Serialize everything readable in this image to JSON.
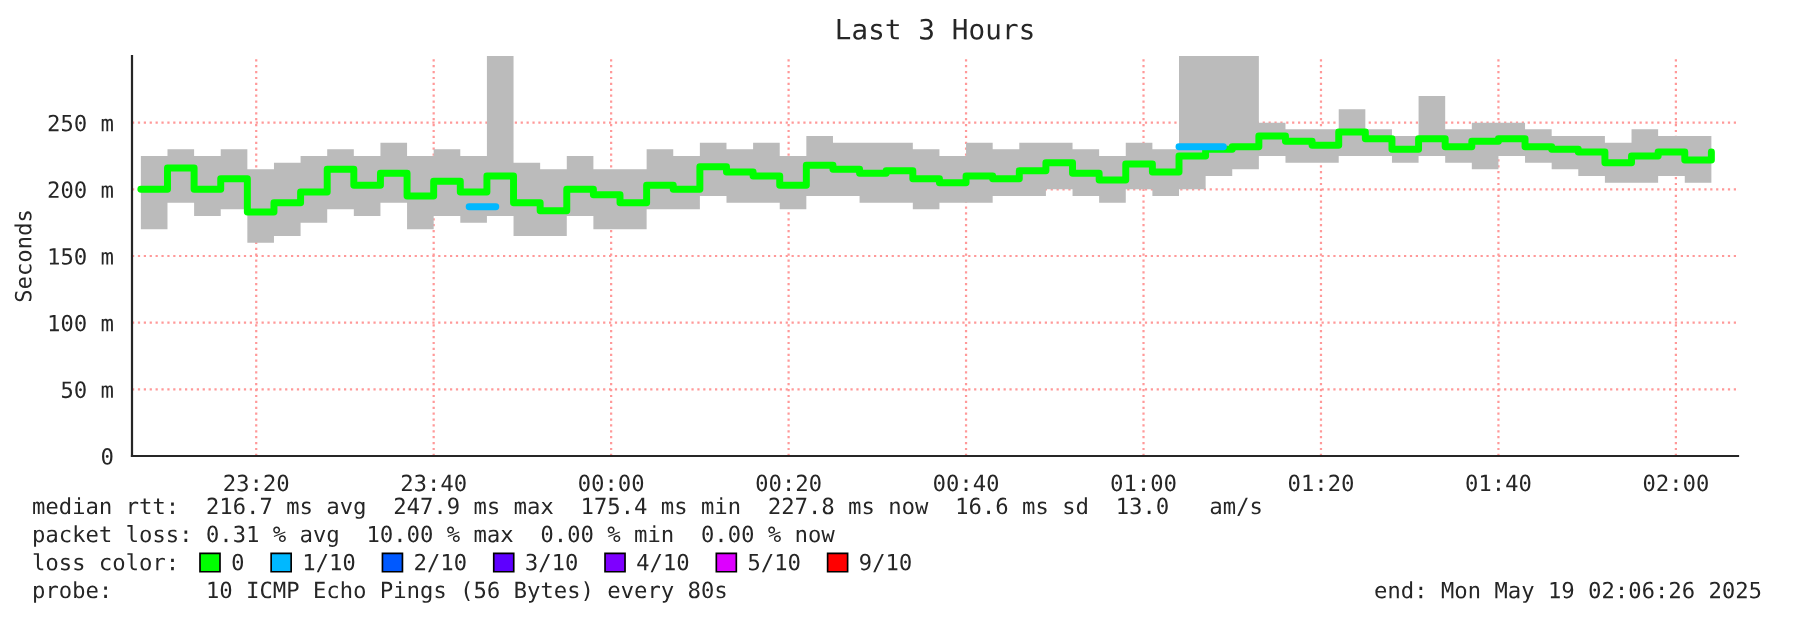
{
  "chart_data": {
    "type": "step",
    "title": "Last 3 Hours",
    "ylabel": "Seconds",
    "x": [
      "2025-05-18T23:07",
      "2025-05-18T23:10",
      "2025-05-18T23:13",
      "2025-05-18T23:16",
      "2025-05-18T23:19",
      "2025-05-18T23:22",
      "2025-05-18T23:25",
      "2025-05-18T23:28",
      "2025-05-18T23:31",
      "2025-05-18T23:34",
      "2025-05-18T23:37",
      "2025-05-18T23:40",
      "2025-05-18T23:43",
      "2025-05-18T23:46",
      "2025-05-18T23:49",
      "2025-05-18T23:52",
      "2025-05-18T23:55",
      "2025-05-18T23:58",
      "2025-05-19T00:01",
      "2025-05-19T00:04",
      "2025-05-19T00:07",
      "2025-05-19T00:10",
      "2025-05-19T00:13",
      "2025-05-19T00:16",
      "2025-05-19T00:19",
      "2025-05-19T00:22",
      "2025-05-19T00:25",
      "2025-05-19T00:28",
      "2025-05-19T00:31",
      "2025-05-19T00:34",
      "2025-05-19T00:37",
      "2025-05-19T00:40",
      "2025-05-19T00:43",
      "2025-05-19T00:46",
      "2025-05-19T00:49",
      "2025-05-19T00:52",
      "2025-05-19T00:55",
      "2025-05-19T00:58",
      "2025-05-19T01:01",
      "2025-05-19T01:04",
      "2025-05-19T01:07",
      "2025-05-19T01:10",
      "2025-05-19T01:13",
      "2025-05-19T01:16",
      "2025-05-19T01:19",
      "2025-05-19T01:22",
      "2025-05-19T01:25",
      "2025-05-19T01:28",
      "2025-05-19T01:31",
      "2025-05-19T01:34",
      "2025-05-19T01:37",
      "2025-05-19T01:40",
      "2025-05-19T01:43",
      "2025-05-19T01:46",
      "2025-05-19T01:49",
      "2025-05-19T01:52",
      "2025-05-19T01:55",
      "2025-05-19T01:58",
      "2025-05-19T02:01",
      "2025-05-19T02:04"
    ],
    "series": [
      {
        "name": "0",
        "color": "#00ff00",
        "values": [
          200,
          216,
          200,
          208,
          183,
          190,
          198,
          215,
          203,
          212,
          195,
          206,
          198,
          210,
          190,
          184,
          200,
          196,
          190,
          203,
          200,
          217,
          213,
          210,
          203,
          218,
          215,
          212,
          214,
          208,
          205,
          210,
          208,
          214,
          220,
          212,
          207,
          219,
          213,
          225,
          230,
          232,
          240,
          236,
          233,
          243,
          238,
          230,
          238,
          232,
          236,
          238,
          232,
          230,
          228,
          220,
          225,
          228,
          222,
          228
        ],
        "lower": [
          170,
          190,
          180,
          185,
          160,
          165,
          175,
          185,
          180,
          190,
          170,
          180,
          175,
          180,
          165,
          165,
          180,
          170,
          170,
          185,
          185,
          195,
          190,
          190,
          185,
          195,
          195,
          190,
          190,
          185,
          190,
          190,
          195,
          195,
          200,
          195,
          190,
          200,
          195,
          200,
          210,
          215,
          225,
          220,
          220,
          225,
          225,
          220,
          225,
          220,
          215,
          225,
          220,
          215,
          210,
          205,
          205,
          210,
          205,
          205
        ],
        "upper": [
          225,
          230,
          225,
          230,
          215,
          220,
          225,
          230,
          225,
          235,
          225,
          230,
          225,
          300,
          220,
          215,
          225,
          215,
          215,
          230,
          225,
          235,
          230,
          235,
          225,
          240,
          235,
          235,
          235,
          230,
          225,
          235,
          230,
          235,
          235,
          230,
          225,
          235,
          230,
          300,
          300,
          300,
          250,
          245,
          245,
          260,
          245,
          240,
          270,
          245,
          250,
          250,
          245,
          240,
          240,
          235,
          245,
          240,
          240,
          245
        ]
      },
      {
        "name": "1/10",
        "color": "#00b8ff",
        "x": [
          "2025-05-18T23:44",
          "2025-05-18T23:46",
          "2025-05-18T23:47",
          "2025-05-19T01:04",
          "2025-05-19T01:09"
        ],
        "values": [
          187,
          187,
          null,
          232,
          232
        ]
      },
      {
        "name": "2/10",
        "color": "#0059ff",
        "values": [
          null,
          null,
          null,
          null,
          null,
          null,
          null,
          null,
          null,
          null,
          null,
          null,
          null,
          null,
          null,
          null,
          null,
          null,
          null,
          null,
          null,
          null,
          null,
          null,
          null,
          null,
          null,
          null,
          null,
          null,
          null,
          null,
          null,
          null,
          null,
          null,
          null,
          null,
          null,
          null,
          null,
          null,
          null,
          null,
          null,
          null,
          null,
          null,
          null,
          null,
          null,
          null,
          null,
          null,
          null,
          null,
          null,
          null,
          null,
          null
        ]
      },
      {
        "name": "3/10",
        "color": "#5e00ff",
        "values": [
          null,
          null,
          null,
          null,
          null,
          null,
          null,
          null,
          null,
          null,
          null,
          null,
          null,
          null,
          null,
          null,
          null,
          null,
          null,
          null,
          null,
          null,
          null,
          null,
          null,
          null,
          null,
          null,
          null,
          null,
          null,
          null,
          null,
          null,
          null,
          null,
          null,
          null,
          null,
          null,
          null,
          null,
          null,
          null,
          null,
          null,
          null,
          null,
          null,
          null,
          null,
          null,
          null,
          null,
          null,
          null,
          null,
          null,
          null,
          null
        ]
      },
      {
        "name": "4/10",
        "color": "#7e00ff",
        "values": [
          null,
          null,
          null,
          null,
          null,
          null,
          null,
          null,
          null,
          null,
          null,
          null,
          null,
          null,
          null,
          null,
          null,
          null,
          null,
          null,
          null,
          null,
          null,
          null,
          null,
          null,
          null,
          null,
          null,
          null,
          null,
          null,
          null,
          null,
          null,
          null,
          null,
          null,
          null,
          null,
          null,
          null,
          null,
          null,
          null,
          null,
          null,
          null,
          null,
          null,
          null,
          null,
          null,
          null,
          null,
          null,
          null,
          null,
          null,
          null
        ]
      },
      {
        "name": "5/10",
        "color": "#dd00ff",
        "values": [
          null,
          null,
          null,
          null,
          null,
          null,
          null,
          null,
          null,
          null,
          null,
          null,
          null,
          null,
          null,
          null,
          null,
          null,
          null,
          null,
          null,
          null,
          null,
          null,
          null,
          null,
          null,
          null,
          null,
          null,
          null,
          null,
          null,
          null,
          null,
          null,
          null,
          null,
          null,
          null,
          null,
          null,
          null,
          null,
          null,
          null,
          null,
          null,
          null,
          null,
          null,
          null,
          null,
          null,
          null,
          null,
          null,
          null,
          null,
          null
        ]
      },
      {
        "name": "9/10",
        "color": "#ff0000",
        "values": [
          null,
          null,
          null,
          null,
          null,
          null,
          null,
          null,
          null,
          null,
          null,
          null,
          null,
          null,
          null,
          null,
          null,
          null,
          null,
          null,
          null,
          null,
          null,
          null,
          null,
          null,
          null,
          null,
          null,
          null,
          null,
          null,
          null,
          null,
          null,
          null,
          null,
          null,
          null,
          null,
          null,
          null,
          null,
          null,
          null,
          null,
          null,
          null,
          null,
          null,
          null,
          null,
          null,
          null,
          null,
          null,
          null,
          null,
          null,
          null
        ]
      }
    ],
    "xlim": [
      "2025-05-18T23:06",
      "2025-05-19T02:07"
    ],
    "xticks": [
      {
        "value": "2025-05-18T23:20",
        "label": "23:20"
      },
      {
        "value": "2025-05-18T23:40",
        "label": "23:40"
      },
      {
        "value": "2025-05-19T00:00",
        "label": "00:00"
      },
      {
        "value": "2025-05-19T00:20",
        "label": "00:20"
      },
      {
        "value": "2025-05-19T00:40",
        "label": "00:40"
      },
      {
        "value": "2025-05-19T01:00",
        "label": "01:00"
      },
      {
        "value": "2025-05-19T01:20",
        "label": "01:20"
      },
      {
        "value": "2025-05-19T01:40",
        "label": "01:40"
      },
      {
        "value": "2025-05-19T02:00",
        "label": "02:00"
      }
    ],
    "ylim": [
      0,
      300
    ],
    "yticks": [
      0,
      {
        "value": 50,
        "label": "50 m"
      },
      {
        "value": 100,
        "label": "100 m"
      },
      {
        "value": 150,
        "label": "150 m"
      },
      {
        "value": 200,
        "label": "200 m"
      },
      {
        "value": 250,
        "label": "250 m"
      }
    ],
    "grid": true,
    "legend": "bottom",
    "annotations": [
      "median rtt:  216.7 ms avg  247.9 ms max  175.4 ms min  227.8 ms now  16.6 ms sd  13.0   am/s",
      "packet loss: 0.31 % avg  10.00 % max  0.00 % min  0.00 % now",
      "loss color:",
      "probe:       10 ICMP Echo Pings (56 Bytes) every 80s",
      "end: Mon May 19 02:06:26 2025"
    ]
  }
}
